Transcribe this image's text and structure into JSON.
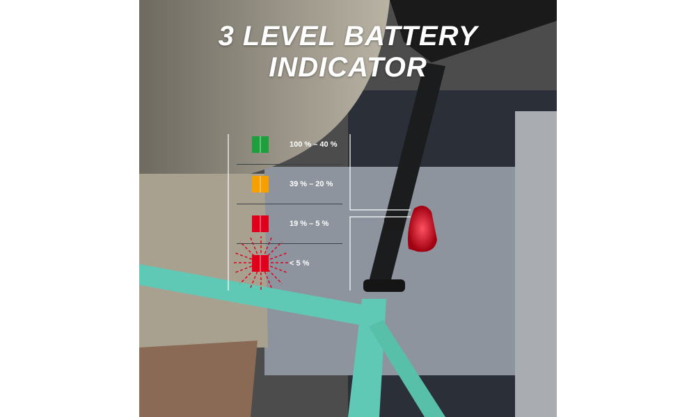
{
  "title": "3 LEVEL BATTERY INDICATOR",
  "levels": [
    {
      "label": "100 % – 40 %",
      "color": "#1e9e3c"
    },
    {
      "label": "39 % – 20 %",
      "color": "#f5a000"
    },
    {
      "label": "19 % – 5 %",
      "color": "#e0001b"
    },
    {
      "label": "< 5 %",
      "color": "#e0001b",
      "blinking": true
    }
  ],
  "frame_color": "#5fc9b5",
  "light_color": "#ff1a2a"
}
